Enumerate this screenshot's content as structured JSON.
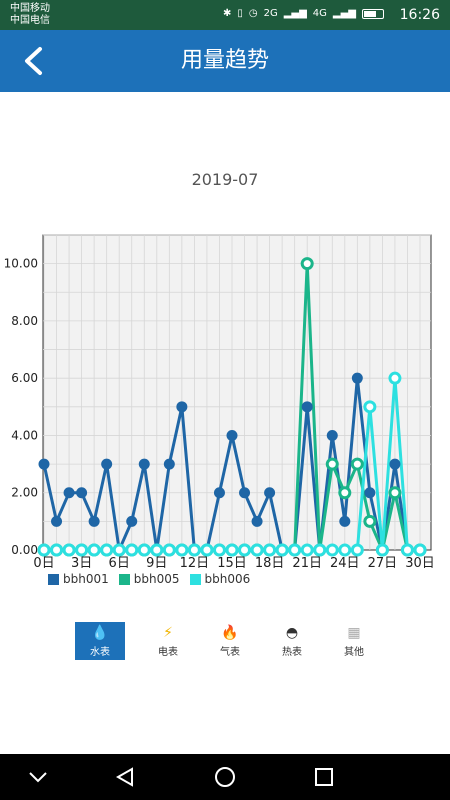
{
  "status_bar": {
    "carrier1": "中国移动",
    "carrier2": "中国电信",
    "signal_text": "2G",
    "signal_text2": "4G",
    "time": "16:26"
  },
  "app_bar": {
    "title": "用量趋势",
    "back_icon": "chevron-left-icon"
  },
  "month_label": "2019-07",
  "chart_data": {
    "type": "line",
    "x": [
      0,
      1,
      2,
      3,
      4,
      5,
      6,
      7,
      8,
      9,
      10,
      11,
      12,
      13,
      14,
      15,
      16,
      17,
      18,
      19,
      20,
      21,
      22,
      23,
      24,
      25,
      26,
      27,
      28,
      29,
      30
    ],
    "x_tick_labels": [
      "0日",
      "3日",
      "6日",
      "9日",
      "12日",
      "15日",
      "18日",
      "21日",
      "24日",
      "27日",
      "30日"
    ],
    "x_tick_values": [
      0,
      3,
      6,
      9,
      12,
      15,
      18,
      21,
      24,
      27,
      30
    ],
    "ylim": [
      0,
      11
    ],
    "y_ticks": [
      "0.00",
      "2.00",
      "4.00",
      "6.00",
      "8.00",
      "10.00"
    ],
    "y_tick_values": [
      0,
      2,
      4,
      6,
      8,
      10
    ],
    "grid": true,
    "legend": "bottom-left",
    "series": [
      {
        "name": "bbh001",
        "color": "#1f66a6",
        "values": [
          3,
          1,
          2,
          2,
          1,
          3,
          0,
          1,
          3,
          0,
          3,
          5,
          0,
          0,
          2,
          4,
          2,
          1,
          2,
          0,
          0,
          5,
          0,
          4,
          1,
          6,
          2,
          0,
          3,
          0,
          0
        ]
      },
      {
        "name": "bbh005",
        "color": "#1bb58a",
        "values": [
          0,
          0,
          0,
          0,
          0,
          0,
          0,
          0,
          0,
          0,
          0,
          0,
          0,
          0,
          0,
          0,
          0,
          0,
          0,
          0,
          0,
          10,
          0,
          3,
          2,
          3,
          1,
          0,
          2,
          0,
          0
        ]
      },
      {
        "name": "bbh006",
        "color": "#2de0e0",
        "values": [
          0,
          0,
          0,
          0,
          0,
          0,
          0,
          0,
          0,
          0,
          0,
          0,
          0,
          0,
          0,
          0,
          0,
          0,
          0,
          0,
          0,
          0,
          0,
          0,
          0,
          0,
          5,
          0,
          6,
          0,
          0
        ]
      }
    ]
  },
  "tabs": [
    {
      "label": "水表",
      "icon": "water-drop-icon",
      "glyph": "💧",
      "color": "#ffffff",
      "active": true
    },
    {
      "label": "电表",
      "icon": "lightning-icon",
      "glyph": "⚡",
      "color": "#f0b400",
      "active": false
    },
    {
      "label": "气表",
      "icon": "flame-icon",
      "glyph": "🔥",
      "color": "#e05030",
      "active": false
    },
    {
      "label": "热表",
      "icon": "gauge-icon",
      "glyph": "◓",
      "color": "#333333",
      "active": false
    },
    {
      "label": "其他",
      "icon": "grid-icon",
      "glyph": "▦",
      "color": "#aaaaaa",
      "active": false
    }
  ],
  "nav": {
    "back": "nav-back-icon",
    "home": "nav-home-icon",
    "recent": "nav-recent-icon",
    "down": "nav-down-icon"
  }
}
